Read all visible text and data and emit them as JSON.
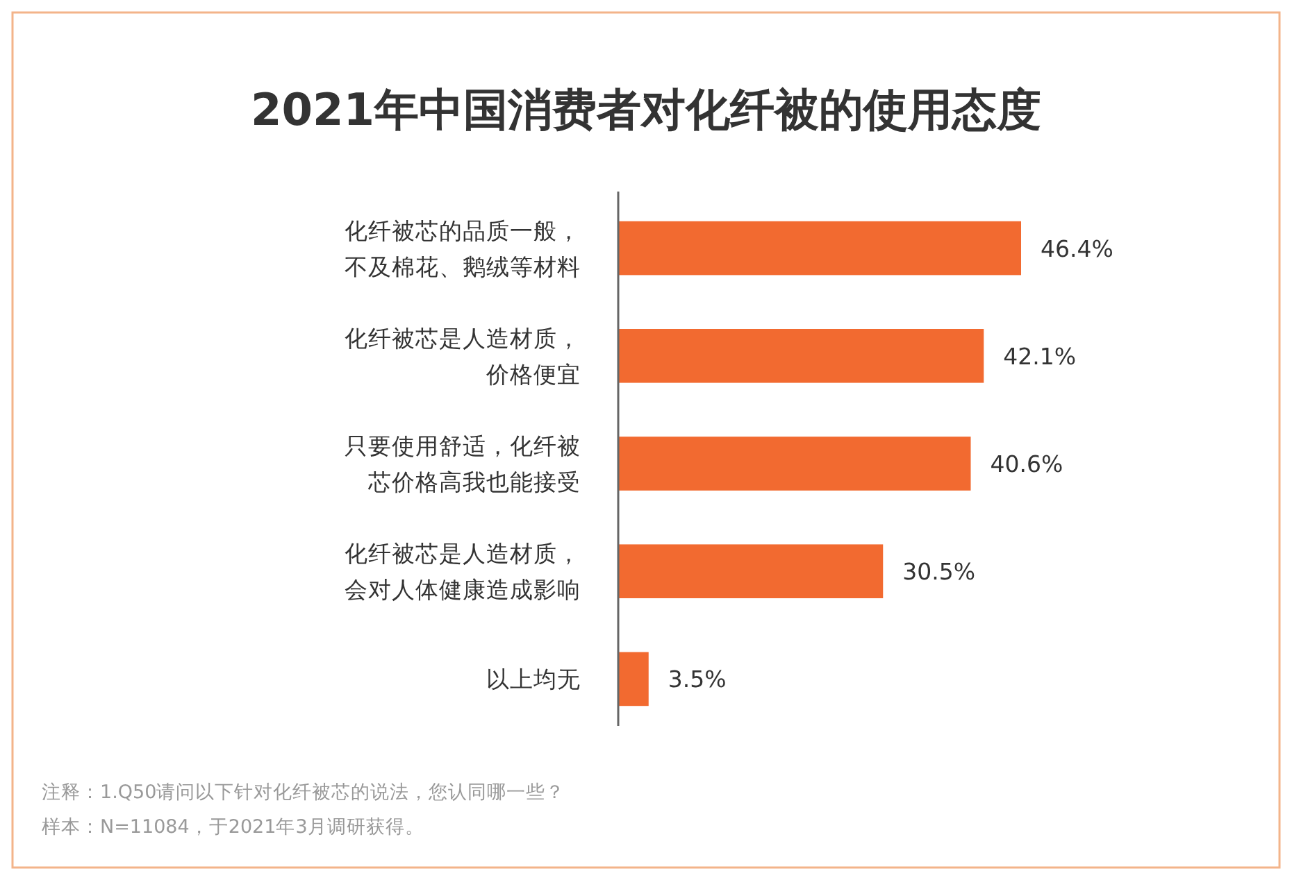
{
  "chart_data": {
    "type": "bar",
    "orientation": "horizontal",
    "title": "2021年中国消费者对化纤被的使用态度",
    "categories": [
      "化纤被芯的品质一般，不及棉花、鹅绒等材料",
      "化纤被芯是人造材质，价格便宜",
      "只要使用舒适，化纤被芯价格高我也能接受",
      "化纤被芯是人造材质，会对人体健康造成影响",
      "以上均无"
    ],
    "values": [
      46.4,
      42.1,
      40.6,
      30.5,
      3.5
    ],
    "value_labels": [
      "46.4%",
      "42.1%",
      "40.6%",
      "30.5%",
      "3.5%"
    ],
    "color": "#f26a30",
    "annotations": [
      "注释：1.Q50请问以下针对化纤被芯的说法，您认同哪一些？",
      "样本：N=11084，于2021年3月调研获得。"
    ]
  }
}
